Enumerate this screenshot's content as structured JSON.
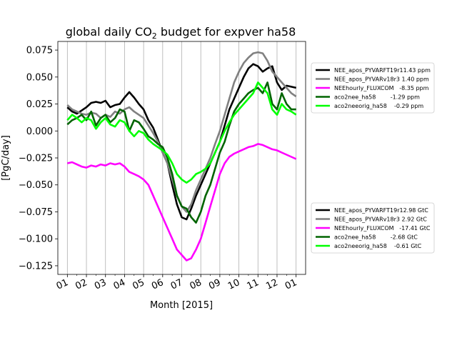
{
  "chart_data": {
    "type": "line",
    "title_main": "global daily CO",
    "title_sub": "2",
    "title_rest": " budget for expver ha58",
    "xlabel": "Month [2015]",
    "ylabel": "[PgC/day]",
    "xticks": [
      "01",
      "02",
      "03",
      "04",
      "05",
      "06",
      "07",
      "08",
      "09",
      "10",
      "11",
      "12",
      "01"
    ],
    "xlim": [
      -0.5,
      12.5
    ],
    "ylim": [
      -0.133,
      0.083
    ],
    "yticks": [
      0.075,
      0.05,
      0.025,
      0.0,
      -0.025,
      -0.05,
      -0.075,
      -0.1,
      -0.125
    ],
    "ytick_labels": [
      "0.075",
      "0.050",
      "0.025",
      "0.000",
      "−0.025",
      "−0.050",
      "−0.075",
      "−0.100",
      "−0.125"
    ],
    "grid": "x-vertical",
    "legend_top": [
      "NEE_apos_PYVARFT19r11.43 ppm",
      "NEE_apos_PYVARv18r3 1.40 ppm",
      "NEEhourly_FLUXCOM   -8.35 ppm",
      "aco2nee_ha58        -1.29 ppm",
      "aco2neeorig_ha58    -0.29 ppm"
    ],
    "legend_bottom": [
      "NEE_apos_PYVARFT19r12.98 GtC",
      "NEE_apos_PYVARv18r3 2.92 GtC",
      "NEEhourly_FLUXCOM   -17.41 GtC",
      "aco2nee_ha58        -2.68 GtC",
      "aco2neeorig_ha58    -0.61 GtC"
    ],
    "series": [
      {
        "name": "NEE_apos_PYVARFT19r1",
        "color": "#000000",
        "x": [
          0,
          0.25,
          0.5,
          0.75,
          1,
          1.25,
          1.5,
          1.75,
          2,
          2.25,
          2.5,
          2.75,
          3,
          3.25,
          3.5,
          3.75,
          4,
          4.25,
          4.5,
          4.75,
          5,
          5.25,
          5.5,
          5.75,
          6,
          6.25,
          6.5,
          6.75,
          7,
          7.25,
          7.5,
          7.75,
          8,
          8.25,
          8.5,
          8.75,
          9,
          9.25,
          9.5,
          9.75,
          10,
          10.25,
          10.5,
          10.75,
          11,
          11.25,
          11.5,
          11.75,
          12
        ],
        "y": [
          0.022,
          0.018,
          0.016,
          0.019,
          0.022,
          0.026,
          0.027,
          0.026,
          0.028,
          0.022,
          0.024,
          0.025,
          0.031,
          0.036,
          0.031,
          0.025,
          0.02,
          0.01,
          0.003,
          -0.008,
          -0.02,
          -0.03,
          -0.05,
          -0.068,
          -0.08,
          -0.082,
          -0.072,
          -0.06,
          -0.05,
          -0.04,
          -0.03,
          -0.02,
          -0.01,
          0.005,
          0.02,
          0.03,
          0.04,
          0.05,
          0.058,
          0.062,
          0.06,
          0.055,
          0.058,
          0.06,
          0.045,
          0.038,
          0.042,
          0.041,
          0.04
        ]
      },
      {
        "name": "NEE_apos_PYVARv18r3",
        "color": "#808080",
        "x": [
          0,
          0.25,
          0.5,
          0.75,
          1,
          1.25,
          1.5,
          1.75,
          2,
          2.25,
          2.5,
          2.75,
          3,
          3.25,
          3.5,
          3.75,
          4,
          4.25,
          4.5,
          4.75,
          5,
          5.25,
          5.5,
          5.75,
          6,
          6.25,
          6.5,
          6.75,
          7,
          7.25,
          7.5,
          7.75,
          8,
          8.25,
          8.5,
          8.75,
          9,
          9.25,
          9.5,
          9.75,
          10,
          10.25,
          10.5,
          10.75,
          11,
          11.25,
          11.5,
          11.75,
          12
        ],
        "y": [
          0.024,
          0.02,
          0.018,
          0.016,
          0.015,
          0.017,
          0.016,
          0.012,
          0.015,
          0.013,
          0.018,
          0.016,
          0.02,
          0.022,
          0.018,
          0.015,
          0.012,
          0.005,
          -0.002,
          -0.01,
          -0.02,
          -0.03,
          -0.045,
          -0.06,
          -0.07,
          -0.075,
          -0.068,
          -0.055,
          -0.045,
          -0.035,
          -0.025,
          -0.012,
          0.0,
          0.015,
          0.03,
          0.045,
          0.055,
          0.063,
          0.068,
          0.072,
          0.073,
          0.072,
          0.065,
          0.055,
          0.05,
          0.045,
          0.04,
          0.035,
          0.032
        ]
      },
      {
        "name": "NEEhourly_FLUXCOM",
        "color": "#ff00ff",
        "x": [
          0,
          0.25,
          0.5,
          0.75,
          1,
          1.25,
          1.5,
          1.75,
          2,
          2.25,
          2.5,
          2.75,
          3,
          3.25,
          3.5,
          3.75,
          4,
          4.25,
          4.5,
          4.75,
          5,
          5.25,
          5.5,
          5.75,
          6,
          6.25,
          6.5,
          6.75,
          7,
          7.25,
          7.5,
          7.75,
          8,
          8.25,
          8.5,
          8.75,
          9,
          9.25,
          9.5,
          9.75,
          10,
          10.25,
          10.5,
          10.75,
          11,
          11.25,
          11.5,
          11.75,
          12
        ],
        "y": [
          -0.03,
          -0.029,
          -0.031,
          -0.033,
          -0.034,
          -0.032,
          -0.033,
          -0.031,
          -0.032,
          -0.03,
          -0.031,
          -0.03,
          -0.033,
          -0.038,
          -0.04,
          -0.042,
          -0.045,
          -0.05,
          -0.06,
          -0.07,
          -0.08,
          -0.09,
          -0.1,
          -0.11,
          -0.115,
          -0.12,
          -0.118,
          -0.11,
          -0.1,
          -0.085,
          -0.07,
          -0.055,
          -0.04,
          -0.03,
          -0.024,
          -0.021,
          -0.019,
          -0.017,
          -0.015,
          -0.014,
          -0.012,
          -0.013,
          -0.015,
          -0.017,
          -0.018,
          -0.02,
          -0.022,
          -0.024,
          -0.026
        ]
      },
      {
        "name": "aco2nee_ha58",
        "color": "#006400",
        "x": [
          0,
          0.25,
          0.5,
          0.75,
          1,
          1.25,
          1.5,
          1.75,
          2,
          2.25,
          2.5,
          2.75,
          3,
          3.25,
          3.5,
          3.75,
          4,
          4.25,
          4.5,
          4.75,
          5,
          5.25,
          5.5,
          5.75,
          6,
          6.25,
          6.5,
          6.75,
          7,
          7.25,
          7.5,
          7.75,
          8,
          8.25,
          8.5,
          8.75,
          9,
          9.25,
          9.5,
          9.75,
          10,
          10.25,
          10.5,
          10.75,
          11,
          11.25,
          11.5,
          11.75,
          12
        ],
        "y": [
          0.006,
          0.01,
          0.012,
          0.015,
          0.01,
          0.018,
          0.005,
          0.012,
          0.015,
          0.008,
          0.012,
          0.02,
          0.018,
          0.0,
          0.01,
          0.008,
          0.002,
          -0.005,
          -0.008,
          -0.012,
          -0.015,
          -0.025,
          -0.04,
          -0.06,
          -0.07,
          -0.072,
          -0.08,
          -0.085,
          -0.075,
          -0.06,
          -0.05,
          -0.035,
          -0.02,
          -0.01,
          0.005,
          0.018,
          0.025,
          0.03,
          0.035,
          0.038,
          0.04,
          0.035,
          0.045,
          0.025,
          0.02,
          0.035,
          0.025,
          0.02,
          0.02
        ]
      },
      {
        "name": "aco2neeorig_ha58",
        "color": "#00ff00",
        "x": [
          0,
          0.25,
          0.5,
          0.75,
          1,
          1.25,
          1.5,
          1.75,
          2,
          2.25,
          2.5,
          2.75,
          3,
          3.25,
          3.5,
          3.75,
          4,
          4.25,
          4.5,
          4.75,
          5,
          5.25,
          5.5,
          5.75,
          6,
          6.25,
          6.5,
          6.75,
          7,
          7.25,
          7.5,
          7.75,
          8,
          8.25,
          8.5,
          8.75,
          9,
          9.25,
          9.5,
          9.75,
          10,
          10.25,
          10.5,
          10.75,
          11,
          11.25,
          11.5,
          11.75,
          12
        ],
        "y": [
          0.01,
          0.015,
          0.012,
          0.008,
          0.012,
          0.01,
          0.002,
          0.008,
          0.012,
          0.006,
          0.004,
          0.01,
          0.008,
          0.0,
          -0.005,
          0.0,
          -0.002,
          -0.008,
          -0.012,
          -0.015,
          -0.018,
          -0.022,
          -0.03,
          -0.04,
          -0.045,
          -0.048,
          -0.045,
          -0.04,
          -0.038,
          -0.035,
          -0.03,
          -0.02,
          -0.01,
          0.0,
          0.008,
          0.015,
          0.02,
          0.025,
          0.03,
          0.035,
          0.045,
          0.04,
          0.035,
          0.02,
          0.015,
          0.025,
          0.02,
          0.018,
          0.015
        ]
      }
    ]
  }
}
